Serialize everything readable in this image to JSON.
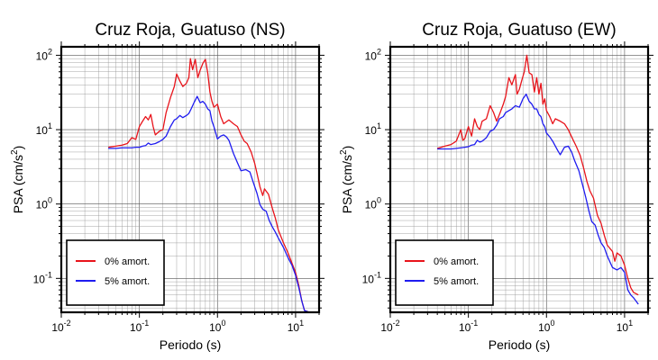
{
  "chart_data": [
    {
      "type": "line",
      "title": "Cruz Roja, Guatuso (NS)",
      "xlabel": "Periodo (s)",
      "ylabel": "PSA (cm/s²)",
      "ylabel_parts": {
        "text": "PSA (cm/s",
        "sup": "2",
        "close": ")"
      },
      "xscale": "log",
      "yscale": "log",
      "xlim": [
        0.01,
        20
      ],
      "ylim": [
        0.035,
        130
      ],
      "x_ticks": [
        {
          "base": "10",
          "exp": "-2"
        },
        {
          "base": "10",
          "exp": "-1"
        },
        {
          "base": "10",
          "exp": "0"
        },
        {
          "base": "10",
          "exp": "1"
        }
      ],
      "y_ticks": [
        {
          "base": "10",
          "exp": "-1"
        },
        {
          "base": "10",
          "exp": "0"
        },
        {
          "base": "10",
          "exp": "1"
        },
        {
          "base": "10",
          "exp": "2"
        }
      ],
      "grid": true,
      "legend_position": "bottom-left",
      "series": [
        {
          "name": "0% amort.",
          "color": "#e8141b",
          "points": [
            [
              0.04,
              5.8
            ],
            [
              0.05,
              6.0
            ],
            [
              0.06,
              6.2
            ],
            [
              0.07,
              6.5
            ],
            [
              0.08,
              7.8
            ],
            [
              0.09,
              7.4
            ],
            [
              0.1,
              11
            ],
            [
              0.11,
              13
            ],
            [
              0.12,
              15
            ],
            [
              0.13,
              13.5
            ],
            [
              0.14,
              16
            ],
            [
              0.15,
              11
            ],
            [
              0.16,
              8.5
            ],
            [
              0.18,
              9.5
            ],
            [
              0.2,
              10
            ],
            [
              0.22,
              17
            ],
            [
              0.25,
              27
            ],
            [
              0.28,
              38
            ],
            [
              0.3,
              56
            ],
            [
              0.33,
              45
            ],
            [
              0.36,
              38
            ],
            [
              0.4,
              42
            ],
            [
              0.43,
              50
            ],
            [
              0.45,
              90
            ],
            [
              0.48,
              64
            ],
            [
              0.52,
              88
            ],
            [
              0.56,
              50
            ],
            [
              0.6,
              63
            ],
            [
              0.65,
              78
            ],
            [
              0.7,
              88
            ],
            [
              0.75,
              58
            ],
            [
              0.8,
              32
            ],
            [
              0.85,
              24
            ],
            [
              0.9,
              20
            ],
            [
              1.0,
              22
            ],
            [
              1.1,
              15
            ],
            [
              1.2,
              12
            ],
            [
              1.4,
              13.5
            ],
            [
              1.6,
              12
            ],
            [
              1.8,
              11
            ],
            [
              2.0,
              8.5
            ],
            [
              2.2,
              7
            ],
            [
              2.4,
              6.5
            ],
            [
              2.7,
              5
            ],
            [
              3.0,
              3.5
            ],
            [
              3.2,
              2.6
            ],
            [
              3.5,
              1.7
            ],
            [
              3.8,
              1.3
            ],
            [
              4.0,
              1.6
            ],
            [
              4.5,
              1.35
            ],
            [
              5,
              0.9
            ],
            [
              5.5,
              0.65
            ],
            [
              6,
              0.45
            ],
            [
              7,
              0.3
            ],
            [
              8,
              0.22
            ],
            [
              9,
              0.16
            ],
            [
              10,
              0.12
            ],
            [
              11,
              0.08
            ],
            [
              12,
              0.05
            ],
            [
              13,
              0.037
            ],
            [
              15,
              0.035
            ]
          ]
        },
        {
          "name": "5% amort.",
          "color": "#1f1cf0",
          "points": [
            [
              0.04,
              5.6
            ],
            [
              0.05,
              5.6
            ],
            [
              0.06,
              5.7
            ],
            [
              0.07,
              5.7
            ],
            [
              0.08,
              5.7
            ],
            [
              0.09,
              5.8
            ],
            [
              0.1,
              5.8
            ],
            [
              0.11,
              6.0
            ],
            [
              0.12,
              6.1
            ],
            [
              0.13,
              6.6
            ],
            [
              0.14,
              6.3
            ],
            [
              0.16,
              6.5
            ],
            [
              0.18,
              6.9
            ],
            [
              0.2,
              7.4
            ],
            [
              0.22,
              8.2
            ],
            [
              0.25,
              11
            ],
            [
              0.28,
              13.5
            ],
            [
              0.3,
              14
            ],
            [
              0.33,
              15.5
            ],
            [
              0.36,
              14.5
            ],
            [
              0.4,
              15.5
            ],
            [
              0.43,
              16.5
            ],
            [
              0.46,
              19
            ],
            [
              0.5,
              23
            ],
            [
              0.55,
              28
            ],
            [
              0.6,
              23
            ],
            [
              0.65,
              24
            ],
            [
              0.7,
              22
            ],
            [
              0.75,
              19
            ],
            [
              0.8,
              18
            ],
            [
              0.85,
              13
            ],
            [
              0.9,
              11
            ],
            [
              0.95,
              9
            ],
            [
              1.0,
              7.5
            ],
            [
              1.1,
              8.2
            ],
            [
              1.2,
              8.5
            ],
            [
              1.3,
              8.0
            ],
            [
              1.4,
              7.2
            ],
            [
              1.6,
              4.8
            ],
            [
              1.8,
              3.6
            ],
            [
              2.0,
              2.8
            ],
            [
              2.3,
              2.9
            ],
            [
              2.6,
              2.7
            ],
            [
              2.9,
              1.9
            ],
            [
              3.2,
              1.4
            ],
            [
              3.5,
              0.98
            ],
            [
              3.8,
              0.85
            ],
            [
              4.2,
              0.8
            ],
            [
              4.6,
              0.6
            ],
            [
              5,
              0.5
            ],
            [
              5.5,
              0.42
            ],
            [
              6,
              0.35
            ],
            [
              7,
              0.26
            ],
            [
              8,
              0.19
            ],
            [
              9,
              0.15
            ],
            [
              10,
              0.11
            ],
            [
              11,
              0.075
            ],
            [
              12,
              0.05
            ],
            [
              13,
              0.037
            ],
            [
              15,
              0.035
            ]
          ]
        }
      ]
    },
    {
      "type": "line",
      "title": "Cruz Roja, Guatuso (EW)",
      "xlabel": "Periodo (s)",
      "ylabel": "PSA (cm/s²)",
      "ylabel_parts": {
        "text": "PSA (cm/s",
        "sup": "2",
        "close": ")"
      },
      "xscale": "log",
      "yscale": "log",
      "xlim": [
        0.01,
        20
      ],
      "ylim": [
        0.035,
        130
      ],
      "x_ticks": [
        {
          "base": "10",
          "exp": "-2"
        },
        {
          "base": "10",
          "exp": "-1"
        },
        {
          "base": "10",
          "exp": "0"
        },
        {
          "base": "10",
          "exp": "1"
        }
      ],
      "y_ticks": [
        {
          "base": "10",
          "exp": "-1"
        },
        {
          "base": "10",
          "exp": "0"
        },
        {
          "base": "10",
          "exp": "1"
        },
        {
          "base": "10",
          "exp": "2"
        }
      ],
      "grid": true,
      "legend_position": "bottom-left",
      "series": [
        {
          "name": "0% amort.",
          "color": "#e8141b",
          "points": [
            [
              0.04,
              5.6
            ],
            [
              0.05,
              6.0
            ],
            [
              0.06,
              6.3
            ],
            [
              0.07,
              7.0
            ],
            [
              0.08,
              10
            ],
            [
              0.085,
              7.2
            ],
            [
              0.09,
              7.6
            ],
            [
              0.1,
              11
            ],
            [
              0.11,
              8.2
            ],
            [
              0.12,
              14
            ],
            [
              0.13,
              11
            ],
            [
              0.14,
              10
            ],
            [
              0.15,
              13
            ],
            [
              0.17,
              14
            ],
            [
              0.19,
              21
            ],
            [
              0.21,
              17
            ],
            [
              0.23,
              13
            ],
            [
              0.25,
              16
            ],
            [
              0.28,
              22
            ],
            [
              0.3,
              28
            ],
            [
              0.33,
              50
            ],
            [
              0.36,
              40
            ],
            [
              0.4,
              55
            ],
            [
              0.42,
              30
            ],
            [
              0.45,
              35
            ],
            [
              0.48,
              45
            ],
            [
              0.52,
              60
            ],
            [
              0.56,
              100
            ],
            [
              0.6,
              58
            ],
            [
              0.65,
              55
            ],
            [
              0.7,
              32
            ],
            [
              0.75,
              50
            ],
            [
              0.8,
              30
            ],
            [
              0.85,
              42
            ],
            [
              0.9,
              22
            ],
            [
              0.95,
              26
            ],
            [
              1.0,
              18
            ],
            [
              1.1,
              15
            ],
            [
              1.2,
              12
            ],
            [
              1.3,
              14
            ],
            [
              1.5,
              13
            ],
            [
              1.7,
              12
            ],
            [
              1.9,
              10
            ],
            [
              2.1,
              8
            ],
            [
              2.4,
              6
            ],
            [
              2.7,
              4.5
            ],
            [
              3.0,
              3
            ],
            [
              3.3,
              2
            ],
            [
              3.6,
              1.5
            ],
            [
              4.0,
              1.2
            ],
            [
              4.5,
              0.7
            ],
            [
              5,
              0.55
            ],
            [
              5.5,
              0.38
            ],
            [
              6,
              0.28
            ],
            [
              7,
              0.23
            ],
            [
              7.5,
              0.17
            ],
            [
              8,
              0.22
            ],
            [
              9,
              0.2
            ],
            [
              10,
              0.15
            ],
            [
              11,
              0.1
            ],
            [
              12,
              0.075
            ],
            [
              13,
              0.065
            ],
            [
              15,
              0.06
            ]
          ]
        },
        {
          "name": "5% amort.",
          "color": "#1f1cf0",
          "points": [
            [
              0.04,
              5.5
            ],
            [
              0.05,
              5.5
            ],
            [
              0.06,
              5.5
            ],
            [
              0.07,
              5.6
            ],
            [
              0.08,
              5.7
            ],
            [
              0.09,
              5.8
            ],
            [
              0.1,
              5.9
            ],
            [
              0.11,
              6.2
            ],
            [
              0.12,
              6.3
            ],
            [
              0.13,
              7.2
            ],
            [
              0.14,
              6.8
            ],
            [
              0.15,
              7.0
            ],
            [
              0.17,
              7.8
            ],
            [
              0.19,
              9.5
            ],
            [
              0.21,
              10
            ],
            [
              0.23,
              11.5
            ],
            [
              0.25,
              14
            ],
            [
              0.28,
              15
            ],
            [
              0.3,
              17
            ],
            [
              0.33,
              18
            ],
            [
              0.36,
              19
            ],
            [
              0.4,
              21
            ],
            [
              0.45,
              20
            ],
            [
              0.5,
              26
            ],
            [
              0.55,
              30
            ],
            [
              0.6,
              24
            ],
            [
              0.65,
              22
            ],
            [
              0.7,
              19
            ],
            [
              0.75,
              19
            ],
            [
              0.8,
              16
            ],
            [
              0.85,
              15
            ],
            [
              0.9,
              12
            ],
            [
              0.95,
              11
            ],
            [
              1.0,
              9
            ],
            [
              1.1,
              8
            ],
            [
              1.2,
              7
            ],
            [
              1.3,
              6
            ],
            [
              1.4,
              5.2
            ],
            [
              1.5,
              4.6
            ],
            [
              1.7,
              5.8
            ],
            [
              1.9,
              6.0
            ],
            [
              2.1,
              5.0
            ],
            [
              2.3,
              3.8
            ],
            [
              2.6,
              2.8
            ],
            [
              2.9,
              1.8
            ],
            [
              3.2,
              1.2
            ],
            [
              3.5,
              0.8
            ],
            [
              3.8,
              0.58
            ],
            [
              4.2,
              0.52
            ],
            [
              4.6,
              0.38
            ],
            [
              5,
              0.3
            ],
            [
              5.5,
              0.26
            ],
            [
              6,
              0.2
            ],
            [
              7,
              0.14
            ],
            [
              8,
              0.13
            ],
            [
              9,
              0.14
            ],
            [
              10,
              0.12
            ],
            [
              11,
              0.07
            ],
            [
              12,
              0.06
            ],
            [
              13,
              0.055
            ],
            [
              15,
              0.045
            ]
          ]
        }
      ]
    }
  ]
}
